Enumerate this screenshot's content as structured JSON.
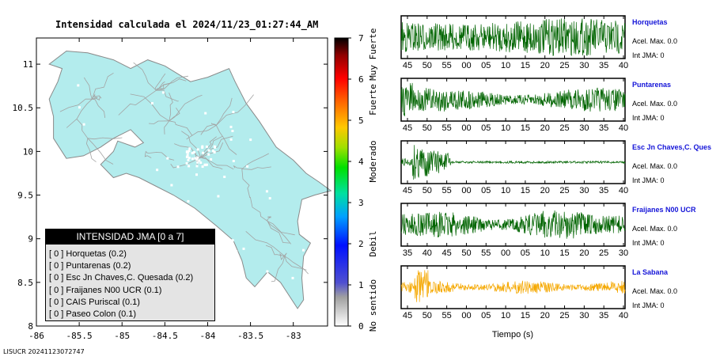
{
  "title": "Intensidad calculada el 2024/11/23_01:27:44_AM",
  "footer": "LISUCR 20241123072747",
  "colors": {
    "land": "#b3eced",
    "road": "#a3a3a3",
    "dot": "#ffffff",
    "trace_green": "#006400",
    "trace_orange": "#f5a800",
    "name_blue": "#1414d8"
  },
  "map": {
    "x_ticks": [
      "-86",
      "-85.5",
      "-85",
      "-84.5",
      "-84",
      "-83.5",
      "-83"
    ],
    "y_ticks": [
      "11",
      "10.5",
      "10",
      "9.5",
      "9",
      "8.5",
      "8"
    ],
    "xlim": [
      -86,
      -82.6
    ],
    "ylim": [
      8,
      11.3
    ]
  },
  "scale": {
    "ticks": [
      "0",
      "1",
      "2",
      "3",
      "4",
      "5",
      "6",
      "7"
    ],
    "range": [
      0,
      7
    ],
    "levels": [
      "No sentido",
      "Debil",
      "Moderado",
      "Fuerte",
      "Muy Fuerte"
    ]
  },
  "legend": {
    "title": "INTENSIDAD JMA [0 a 7]",
    "items": [
      {
        "intensity": "[ 0 ]",
        "station": "Horquetas",
        "value": "(0.2)"
      },
      {
        "intensity": "[ 0 ]",
        "station": "Puntarenas",
        "value": "(0.2)"
      },
      {
        "intensity": "[ 0 ]",
        "station": "Esc Jn Chaves,C. Quesada",
        "value": "(0.2)"
      },
      {
        "intensity": "[ 0 ]",
        "station": "Fraijanes N00 UCR",
        "value": "(0.1)"
      },
      {
        "intensity": "[ 0 ]",
        "station": "CAIS Puriscal",
        "value": "(0.1)"
      },
      {
        "intensity": "[ 0 ]",
        "station": "Paseo Colon",
        "value": "(0.1)"
      }
    ]
  },
  "waveforms": {
    "xlabel": "Tiempo (s)",
    "panels": [
      {
        "station": "Horquetas",
        "accel": "Acel. Max. 0.0",
        "int": "Int JMA: 0",
        "ticks": [
          "45",
          "50",
          "55",
          "00",
          "05",
          "10",
          "15",
          "20",
          "25",
          "30",
          "35",
          "40"
        ],
        "color": "#006400"
      },
      {
        "station": "Puntarenas",
        "accel": "Acel. Max. 0.0",
        "int": "Int JMA: 0",
        "ticks": [
          "45",
          "50",
          "55",
          "00",
          "05",
          "10",
          "15",
          "20",
          "25",
          "30",
          "35",
          "40"
        ],
        "color": "#006400"
      },
      {
        "station": "Esc Jn Chaves,C. Ques",
        "accel": "Acel. Max. 0.0",
        "int": "Int JMA: 0",
        "ticks": [
          "45",
          "50",
          "55",
          "00",
          "05",
          "10",
          "15",
          "20",
          "25",
          "30",
          "35",
          "40"
        ],
        "color": "#006400"
      },
      {
        "station": "Fraijanes N00 UCR",
        "accel": "Acel. Max. 0.0",
        "int": "Int JMA: 0",
        "ticks": [
          "35",
          "40",
          "45",
          "50",
          "55",
          "00",
          "05",
          "10",
          "15",
          "20",
          "25",
          "30"
        ],
        "color": "#006400"
      },
      {
        "station": "La Sabana",
        "accel": "Acel. Max. 0.0",
        "int": "Int JMA: 0",
        "ticks": [
          "45",
          "50",
          "55",
          "00",
          "05",
          "10",
          "15",
          "20",
          "25",
          "30",
          "35",
          "40"
        ],
        "color": "#f5a800"
      }
    ]
  }
}
